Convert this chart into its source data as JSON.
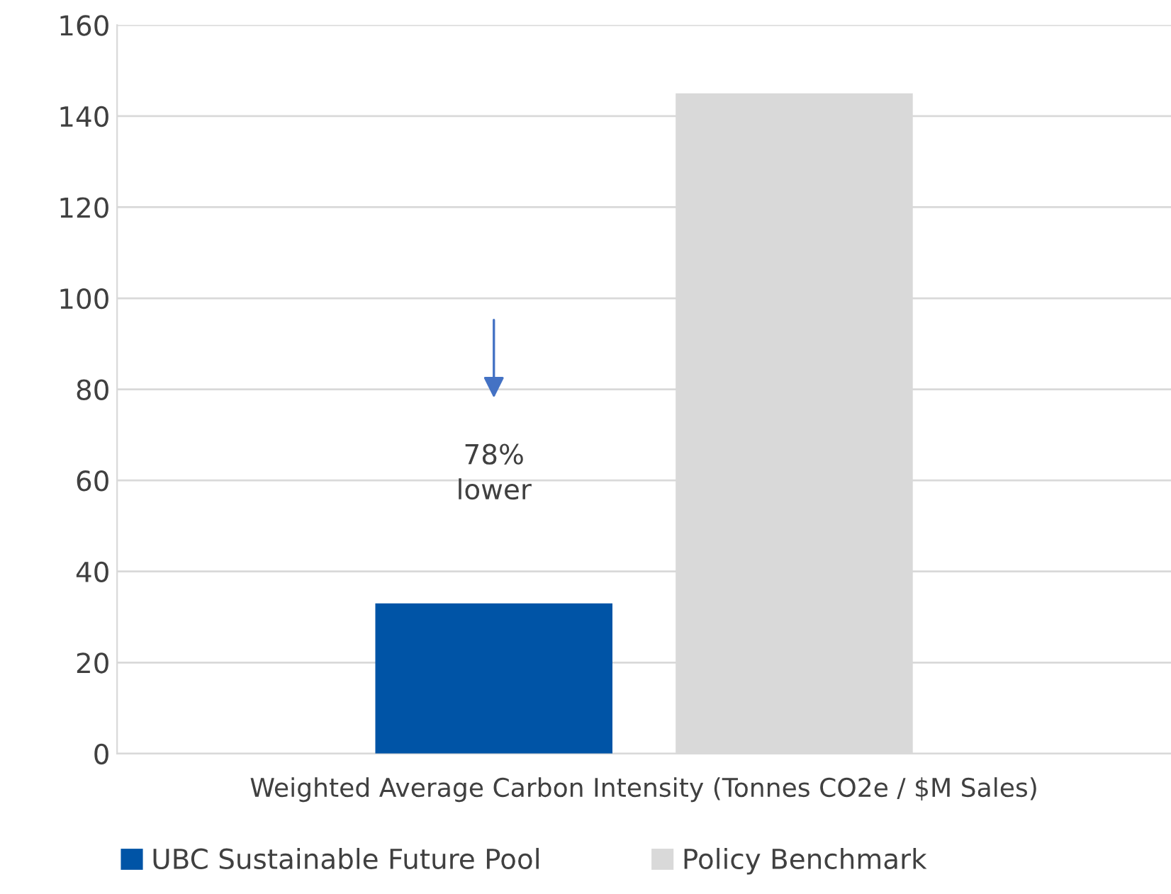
{
  "chart_data": {
    "type": "bar",
    "categories": [
      "Weighted Average Carbon Intensity (Tonnes CO2e / $M Sales)"
    ],
    "series": [
      {
        "name": "UBC Sustainable Future Pool",
        "color": "#0054a6",
        "values": [
          33
        ]
      },
      {
        "name": "Policy Benchmark",
        "color": "#d9d9d9",
        "values": [
          145
        ]
      }
    ],
    "ylim": [
      0,
      160
    ],
    "yticks": [
      0,
      20,
      40,
      60,
      80,
      100,
      120,
      140,
      160
    ],
    "grid": "y",
    "legend": "bottom",
    "annotations": [
      "78%\nlower"
    ]
  }
}
